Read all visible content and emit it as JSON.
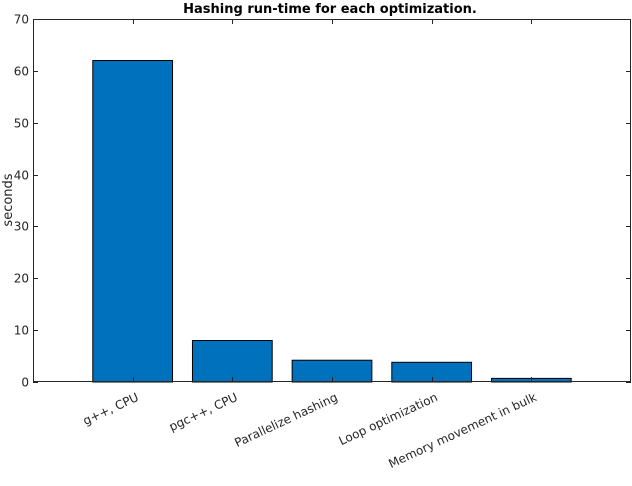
{
  "chart_data": {
    "type": "bar",
    "title": "Hashing run-time for each optimization.",
    "xlabel": "",
    "ylabel": "seconds",
    "categories": [
      "g++, CPU",
      "pgc++, CPU",
      "Parallelize hashing",
      "Loop optimization",
      "Memory movement in bulk"
    ],
    "values": [
      62,
      8,
      4.2,
      3.8,
      0.7
    ],
    "ylim": [
      0,
      70
    ],
    "yticks": [
      0,
      10,
      20,
      30,
      40,
      50,
      60,
      70
    ],
    "bar_color": "#0072BD",
    "grid": false,
    "legend": "none"
  }
}
